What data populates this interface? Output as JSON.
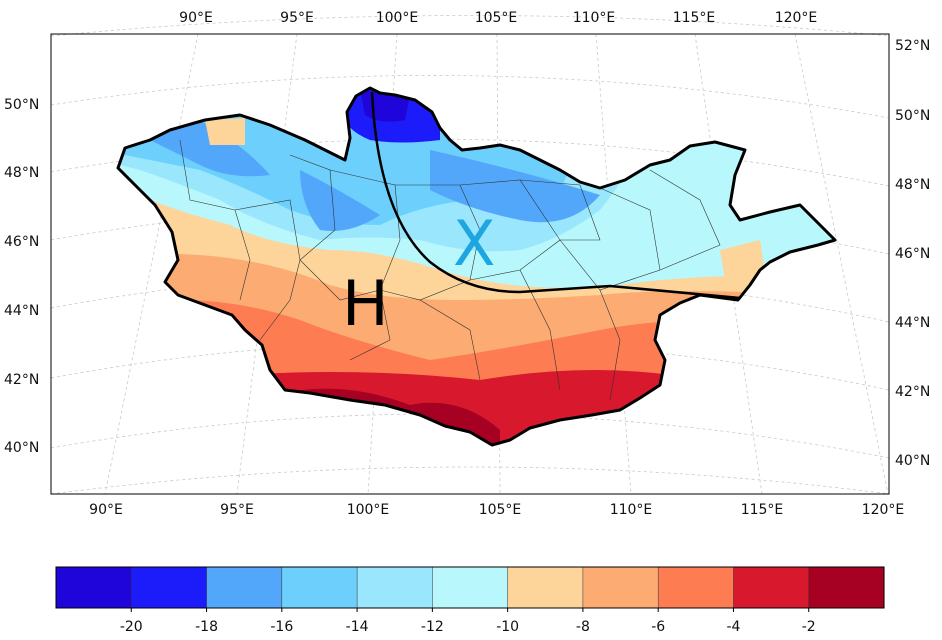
{
  "map": {
    "region": "Mongolia",
    "top_lon_labels": [
      "90°E",
      "95°E",
      "100°E",
      "105°E",
      "110°E",
      "115°E",
      "120°E"
    ],
    "bottom_lon_labels": [
      "90°E",
      "95°E",
      "100°E",
      "105°E",
      "110°E",
      "115°E",
      "120°E"
    ],
    "left_lat_labels": [
      "50°N",
      "48°N",
      "46°N",
      "44°N",
      "42°N",
      "40°N"
    ],
    "right_lat_labels": [
      "52°N",
      "50°N",
      "48°N",
      "46°N",
      "44°N",
      "42°N",
      "40°N"
    ],
    "markers": [
      {
        "label": "H",
        "color": "#000000",
        "lon": 99.8,
        "lat": 44.2
      },
      {
        "label": "X",
        "color": "#1ea6e0",
        "lon": 104.5,
        "lat": 46.3
      }
    ]
  },
  "colorbar": {
    "colors": [
      "#1f05d9",
      "#1c1cfb",
      "#52a7fb",
      "#6dcffb",
      "#9ae6fd",
      "#b8f8fc",
      "#fdd49a",
      "#fcac72",
      "#fd7c52",
      "#d8182d",
      "#a60022"
    ],
    "tick_labels": [
      "-20",
      "-18",
      "-16",
      "-14",
      "-12",
      "-10",
      "-8",
      "-6",
      "-4",
      "-2"
    ]
  }
}
